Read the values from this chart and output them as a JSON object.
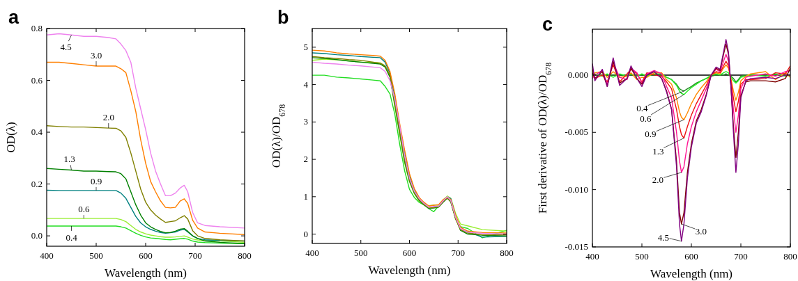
{
  "chart_data": [
    {
      "type": "line",
      "title": "a",
      "xlabel": "Wavelength (nm)",
      "ylabel": "OD(λ)",
      "xlim": [
        400,
        800
      ],
      "xticks": [
        400,
        500,
        600,
        700,
        800
      ],
      "ylim": [
        -0.04,
        0.8
      ],
      "yticks": [
        {
          "value": 0,
          "label": "0.0"
        },
        0.2,
        0.4,
        0.6,
        0.8
      ],
      "grid": false,
      "legend": false,
      "marker": "none",
      "line_style": "solid",
      "x": [
        400,
        425,
        450,
        475,
        500,
        525,
        540,
        550,
        560,
        570,
        580,
        590,
        600,
        610,
        620,
        630,
        640,
        650,
        660,
        670,
        678,
        685,
        695,
        705,
        720,
        750,
        800
      ],
      "series": [
        {
          "name": "4.5",
          "color": "#ee82ee",
          "values": [
            0.775,
            0.78,
            0.775,
            0.77,
            0.77,
            0.765,
            0.76,
            0.74,
            0.715,
            0.67,
            0.57,
            0.49,
            0.41,
            0.32,
            0.25,
            0.2,
            0.155,
            0.155,
            0.165,
            0.185,
            0.195,
            0.17,
            0.09,
            0.05,
            0.04,
            0.035,
            0.03
          ]
        },
        {
          "name": "3.0",
          "color": "#ff7f00",
          "values": [
            0.67,
            0.67,
            0.665,
            0.66,
            0.655,
            0.655,
            0.655,
            0.645,
            0.63,
            0.56,
            0.48,
            0.37,
            0.28,
            0.21,
            0.17,
            0.135,
            0.11,
            0.108,
            0.11,
            0.135,
            0.143,
            0.125,
            0.06,
            0.03,
            0.015,
            0.01,
            0.005
          ]
        },
        {
          "name": "2.0",
          "color": "#808000",
          "values": [
            0.425,
            0.422,
            0.42,
            0.42,
            0.418,
            0.416,
            0.415,
            0.405,
            0.38,
            0.32,
            0.25,
            0.18,
            0.13,
            0.1,
            0.08,
            0.065,
            0.052,
            0.055,
            0.058,
            0.07,
            0.078,
            0.065,
            0.02,
            0,
            -0.01,
            -0.015,
            -0.02
          ]
        },
        {
          "name": "1.3",
          "color": "#008000",
          "values": [
            0.26,
            0.257,
            0.254,
            0.25,
            0.25,
            0.248,
            0.247,
            0.24,
            0.22,
            0.17,
            0.12,
            0.08,
            0.05,
            0.035,
            0.025,
            0.017,
            0.012,
            0.013,
            0.018,
            0.026,
            0.028,
            0.018,
            0,
            -0.01,
            -0.02,
            -0.025,
            -0.03
          ]
        },
        {
          "name": "0.9",
          "color": "#008080",
          "values": [
            0.176,
            0.175,
            0.175,
            0.175,
            0.175,
            0.175,
            0.175,
            0.165,
            0.145,
            0.11,
            0.075,
            0.05,
            0.035,
            0.025,
            0.018,
            0.013,
            0.01,
            0.012,
            0.015,
            0.022,
            0.025,
            0.015,
            0,
            -0.01,
            -0.015,
            -0.018,
            -0.02
          ]
        },
        {
          "name": "0.6",
          "color": "#99ee33",
          "values": [
            0.067,
            0.067,
            0.067,
            0.067,
            0.067,
            0.067,
            0.067,
            0.063,
            0.055,
            0.04,
            0.025,
            0.015,
            0.008,
            0.003,
            0,
            -0.003,
            -0.005,
            -0.005,
            -0.004,
            -0.002,
            0,
            -0.005,
            -0.012,
            -0.016,
            -0.018,
            -0.02,
            -0.025
          ]
        },
        {
          "name": "0.4",
          "color": "#22dd22",
          "values": [
            0.038,
            0.038,
            0.038,
            0.038,
            0.038,
            0.038,
            0.038,
            0.035,
            0.03,
            0.02,
            0.01,
            0.002,
            -0.004,
            -0.008,
            -0.01,
            -0.012,
            -0.014,
            -0.015,
            -0.013,
            -0.011,
            -0.01,
            -0.013,
            -0.02,
            -0.024,
            -0.026,
            -0.028,
            -0.03
          ]
        }
      ]
    },
    {
      "type": "line",
      "title": "b",
      "xlabel": "Wavelength (nm)",
      "ylabel": "OD(λ)/OD$_{678}$",
      "xlim": [
        400,
        800
      ],
      "xticks": [
        400,
        500,
        600,
        700,
        800
      ],
      "ylim": [
        -0.25,
        5.5
      ],
      "yticks": [
        0,
        1,
        2,
        3,
        4,
        5
      ],
      "grid": false,
      "legend": false,
      "marker": "none",
      "line_style": "solid",
      "x": [
        400,
        425,
        450,
        475,
        500,
        525,
        540,
        550,
        560,
        570,
        580,
        590,
        600,
        610,
        620,
        630,
        640,
        650,
        660,
        670,
        678,
        685,
        695,
        705,
        720,
        750,
        800
      ],
      "series": [
        {
          "color": "#ee82ee",
          "values": [
            4.6,
            4.57,
            4.55,
            4.52,
            4.5,
            4.47,
            4.45,
            4.35,
            4.1,
            3.6,
            2.9,
            2.1,
            1.5,
            1.15,
            0.95,
            0.82,
            0.72,
            0.74,
            0.75,
            0.9,
            1,
            0.9,
            0.45,
            0.15,
            0.05,
            0.02,
            0
          ]
        },
        {
          "color": "#ff7f00",
          "values": [
            4.92,
            4.9,
            4.85,
            4.82,
            4.8,
            4.78,
            4.76,
            4.65,
            4.35,
            3.75,
            2.95,
            2.25,
            1.62,
            1.22,
            0.98,
            0.85,
            0.75,
            0.77,
            0.79,
            0.93,
            0.98,
            0.93,
            0.5,
            0.18,
            0.08,
            0.04,
            0.03
          ]
        },
        {
          "color": "#808000",
          "values": [
            4.75,
            4.72,
            4.7,
            4.67,
            4.65,
            4.6,
            4.57,
            4.5,
            4.25,
            3.5,
            2.75,
            2.0,
            1.45,
            1.12,
            0.92,
            0.79,
            0.7,
            0.71,
            0.73,
            0.88,
            0.97,
            0.87,
            0.4,
            0.12,
            0.03,
            -0.02,
            -0.02
          ]
        },
        {
          "color": "#008000",
          "values": [
            4.72,
            4.7,
            4.67,
            4.63,
            4.6,
            4.57,
            4.55,
            4.47,
            4.2,
            3.45,
            2.7,
            1.95,
            1.42,
            1.1,
            0.9,
            0.78,
            0.69,
            0.7,
            0.72,
            0.86,
            0.96,
            0.86,
            0.42,
            0.1,
            0,
            -0.03,
            -0.05
          ]
        },
        {
          "color": "#008080",
          "values": [
            4.85,
            4.83,
            4.8,
            4.78,
            4.75,
            4.73,
            4.72,
            4.6,
            4.3,
            3.68,
            2.88,
            2.18,
            1.56,
            1.19,
            0.96,
            0.83,
            0.68,
            0.72,
            0.74,
            0.91,
            0.99,
            0.95,
            0.48,
            0.13,
            0.06,
            -0.08,
            -0.06
          ]
        },
        {
          "color": "#99ee33",
          "values": [
            4.65,
            4.68,
            4.66,
            4.64,
            4.6,
            4.6,
            4.58,
            4.5,
            4.2,
            3.4,
            2.65,
            1.9,
            1.4,
            1.08,
            0.88,
            0.8,
            0.76,
            0.78,
            0.77,
            0.92,
            1.02,
            0.96,
            0.55,
            0.27,
            0.22,
            0.12,
            0.08
          ]
        },
        {
          "color": "#22dd22",
          "values": [
            4.25,
            4.25,
            4.2,
            4.18,
            4.15,
            4.12,
            4.1,
            3.95,
            3.75,
            3.2,
            2.4,
            1.7,
            1.2,
            0.98,
            0.85,
            0.78,
            0.68,
            0.6,
            0.75,
            0.9,
            1,
            0.88,
            0.4,
            0.2,
            0.15,
            -0.1,
            0.1
          ]
        }
      ]
    },
    {
      "type": "line",
      "title": "c",
      "xlabel": "Wavelength (nm)",
      "ylabel": "First derivative of OD(λ)/OD$_{678}$",
      "xlim": [
        400,
        800
      ],
      "xticks": [
        400,
        500,
        600,
        700,
        800
      ],
      "ylim": [
        -0.015,
        0.004
      ],
      "yticks": [
        {
          "value": 0,
          "label": "0.000"
        },
        {
          "value": -0.005,
          "label": "-0.005"
        },
        {
          "value": -0.01,
          "label": "-0.010"
        },
        {
          "value": -0.015,
          "label": "-0.015"
        }
      ],
      "grid": false,
      "legend": false,
      "marker": "none",
      "line_style": "solid",
      "ref_lines": [
        {
          "axis": "y",
          "value": 0,
          "color": "#000000"
        }
      ],
      "x": [
        400,
        405,
        420,
        430,
        442,
        455,
        470,
        478,
        490,
        500,
        510,
        525,
        540,
        550,
        560,
        570,
        576,
        580,
        585,
        592,
        600,
        610,
        620,
        630,
        640,
        650,
        658,
        665,
        670,
        675,
        680,
        685,
        690,
        695,
        700,
        710,
        720,
        750,
        770,
        790,
        800
      ],
      "series": [
        {
          "name": "4.5",
          "color": "#800080",
          "values": [
            0.001,
            -0.0005,
            0.0005,
            -0.001,
            0.0015,
            -0.0009,
            -0.0003,
            0.0008,
            -0.0003,
            -0.001,
            0,
            0.0003,
            -0.0003,
            -0.0015,
            -0.003,
            -0.008,
            -0.013,
            -0.0145,
            -0.013,
            -0.009,
            -0.0063,
            -0.0042,
            -0.0032,
            -0.0018,
            0,
            0.0007,
            0.0005,
            0.002,
            0.0031,
            0.002,
            -0.001,
            -0.005,
            -0.0085,
            -0.006,
            -0.002,
            -0.0005,
            -0.0003,
            -0.0002,
            -0.0003,
            0,
            0
          ]
        },
        {
          "name": "3.0",
          "color": "#800000",
          "values": [
            0.0002,
            -0.0003,
            0.0003,
            -0.001,
            0.0012,
            -0.0007,
            -0.0003,
            0.0006,
            -0.0003,
            -0.0008,
            0,
            0.0003,
            -0.0003,
            -0.0014,
            -0.003,
            -0.0075,
            -0.012,
            -0.013,
            -0.012,
            -0.0085,
            -0.006,
            -0.004,
            -0.003,
            -0.0017,
            0,
            0.0006,
            0.0004,
            0.0018,
            0.0027,
            0.0018,
            -0.001,
            -0.0045,
            -0.0072,
            -0.005,
            -0.0018,
            -0.0006,
            -0.0005,
            -0.0005,
            -0.0006,
            -0.0003,
            0.0006
          ]
        },
        {
          "name": "2.0",
          "color": "#ff1493",
          "values": [
            -0.0003,
            0,
            0.0004,
            -0.0008,
            0.0011,
            -0.0002,
            -0.0004,
            0.0006,
            0.0002,
            -0.0007,
            0.0001,
            0.0004,
            0.0001,
            -0.001,
            -0.002,
            -0.005,
            -0.0075,
            -0.0085,
            -0.008,
            -0.006,
            -0.0045,
            -0.0032,
            -0.0022,
            -0.0012,
            0,
            0.0005,
            0.0003,
            0.0012,
            0.0018,
            0.0012,
            -0.0008,
            -0.003,
            -0.005,
            -0.0035,
            -0.0012,
            -0.0002,
            -0.0001,
            0.0001,
            -0.0001,
            0.0003,
            0.0004
          ]
        },
        {
          "name": "1.3",
          "color": "#ee1111",
          "values": [
            0.0005,
            -0.0003,
            0,
            -0.0006,
            0.0009,
            -0.0006,
            0.0001,
            0.0005,
            0.0001,
            -0.0006,
            0.0002,
            0,
            -0.0001,
            -0.0006,
            -0.0012,
            -0.003,
            -0.0045,
            -0.0052,
            -0.0055,
            -0.0045,
            -0.0035,
            -0.0025,
            -0.0017,
            -0.0009,
            0,
            0.0003,
            0.0002,
            0.0008,
            0.0012,
            0.0008,
            -0.0005,
            -0.002,
            -0.0032,
            -0.0023,
            -0.0008,
            -0.0004,
            -0.0004,
            -0.0003,
            0.0002,
            0.0001,
            0.0008
          ]
        },
        {
          "name": "0.9",
          "color": "#ff8800",
          "values": [
            -0.0002,
            0.0002,
            0.0003,
            -0.0002,
            0.0003,
            -0.0002,
            -0.0001,
            0.0002,
            -0.0004,
            -0.0002,
            -0.0002,
            0.0002,
            0.0002,
            -0.0004,
            -0.0008,
            -0.002,
            -0.0032,
            -0.0037,
            -0.0039,
            -0.0033,
            -0.0025,
            -0.0017,
            -0.0011,
            -0.0006,
            0,
            0.0002,
            0.0001,
            0.0006,
            0.0009,
            0.0006,
            -0.0003,
            -0.0014,
            -0.0022,
            -0.0015,
            -0.0005,
            -0.0001,
            0.0001,
            0.0003,
            -0.0004,
            0.0002,
            -0.0002
          ]
        },
        {
          "name": "0.6",
          "color": "#22ee22",
          "values": [
            -0.0001,
            0.0001,
            -0.0001,
            0.0001,
            -0.0002,
            0.0001,
            -0.0001,
            0.0001,
            -0.0001,
            0.0001,
            -0.0001,
            0.0001,
            0.0001,
            -0.0002,
            -0.0004,
            -0.0009,
            -0.0014,
            -0.0016,
            -0.0017,
            -0.0014,
            -0.0011,
            -0.0008,
            -0.0005,
            -0.0003,
            0,
            0.0001,
            0,
            0.0002,
            0.0003,
            0.0002,
            -0.0002,
            -0.0005,
            -0.0007,
            -0.0005,
            -0.0002,
            -0.0001,
            0,
            -0.0001,
            0.0001,
            -0.0001,
            0
          ]
        },
        {
          "name": "0.4",
          "color": "#228b22",
          "values": [
            0,
            0,
            0,
            0,
            0,
            0,
            0,
            0,
            0,
            0,
            0,
            0,
            0,
            -0.0002,
            -0.0004,
            -0.0008,
            -0.0012,
            -0.0013,
            -0.0014,
            -0.0012,
            -0.001,
            -0.0007,
            -0.0005,
            -0.0003,
            -0.0001,
            0,
            0,
            0,
            0.0001,
            0,
            -0.0001,
            -0.0003,
            -0.0006,
            -0.0004,
            -0.0001,
            0,
            0,
            0,
            0,
            0,
            0
          ]
        }
      ]
    }
  ]
}
